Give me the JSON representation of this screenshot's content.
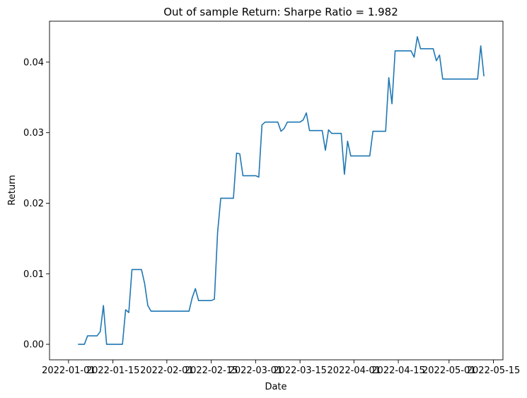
{
  "chart_data": {
    "type": "line",
    "title": "Out of sample Return: Sharpe Ratio = 1.982",
    "xlabel": "Date",
    "ylabel": "Return",
    "grid": false,
    "xlim": [
      "2021-12-26",
      "2022-05-18"
    ],
    "ylim": [
      -0.0022,
      0.0458
    ],
    "x_ticks": [
      "2022-01-01",
      "2022-01-15",
      "2022-02-01",
      "2022-02-15",
      "2022-03-01",
      "2022-03-15",
      "2022-04-01",
      "2022-04-15",
      "2022-05-01",
      "2022-05-15"
    ],
    "y_ticks": [
      "0.00",
      "0.01",
      "0.02",
      "0.03",
      "0.04"
    ],
    "colors": {
      "line": "#1f77b4"
    },
    "series": [
      {
        "x": [
          "2022-01-04",
          "2022-01-05",
          "2022-01-06",
          "2022-01-07",
          "2022-01-10",
          "2022-01-11",
          "2022-01-12",
          "2022-01-13",
          "2022-01-14",
          "2022-01-18",
          "2022-01-19",
          "2022-01-20",
          "2022-01-21",
          "2022-01-24",
          "2022-01-25",
          "2022-01-26",
          "2022-01-27",
          "2022-01-28",
          "2022-01-31",
          "2022-02-01",
          "2022-02-02",
          "2022-02-03",
          "2022-02-04",
          "2022-02-07",
          "2022-02-08",
          "2022-02-09",
          "2022-02-10",
          "2022-02-11",
          "2022-02-14",
          "2022-02-15",
          "2022-02-16",
          "2022-02-17",
          "2022-02-18",
          "2022-02-22",
          "2022-02-23",
          "2022-02-24",
          "2022-02-25",
          "2022-02-28",
          "2022-03-01",
          "2022-03-02",
          "2022-03-03",
          "2022-03-04",
          "2022-03-07",
          "2022-03-08",
          "2022-03-09",
          "2022-03-10",
          "2022-03-11",
          "2022-03-14",
          "2022-03-15",
          "2022-03-16",
          "2022-03-17",
          "2022-03-18",
          "2022-03-21",
          "2022-03-22",
          "2022-03-23",
          "2022-03-24",
          "2022-03-25",
          "2022-03-28",
          "2022-03-29",
          "2022-03-30",
          "2022-03-31",
          "2022-04-01",
          "2022-04-04",
          "2022-04-05",
          "2022-04-06",
          "2022-04-07",
          "2022-04-08",
          "2022-04-11",
          "2022-04-12",
          "2022-04-13",
          "2022-04-14",
          "2022-04-18",
          "2022-04-19",
          "2022-04-20",
          "2022-04-21",
          "2022-04-22",
          "2022-04-25",
          "2022-04-26",
          "2022-04-27",
          "2022-04-28",
          "2022-04-29",
          "2022-05-02",
          "2022-05-03",
          "2022-05-04",
          "2022-05-05",
          "2022-05-06",
          "2022-05-09",
          "2022-05-10",
          "2022-05-11",
          "2022-05-12"
        ],
        "y": [
          0.0,
          0.0,
          0.0,
          0.0012,
          0.0012,
          0.0018,
          0.0055,
          0.0,
          0.0,
          0.0,
          0.0049,
          0.0045,
          0.0106,
          0.0106,
          0.0086,
          0.0055,
          0.0047,
          0.0047,
          0.0047,
          0.0047,
          0.0047,
          0.0047,
          0.0047,
          0.0047,
          0.0047,
          0.0066,
          0.0079,
          0.0062,
          0.0062,
          0.0062,
          0.0064,
          0.0158,
          0.0207,
          0.0207,
          0.0271,
          0.027,
          0.0239,
          0.0239,
          0.0239,
          0.0237,
          0.0311,
          0.0315,
          0.0315,
          0.0315,
          0.0302,
          0.0306,
          0.0315,
          0.0315,
          0.0315,
          0.0318,
          0.0328,
          0.0303,
          0.0303,
          0.0303,
          0.0275,
          0.0304,
          0.0299,
          0.0299,
          0.0241,
          0.0288,
          0.0267,
          0.0267,
          0.0267,
          0.0267,
          0.0267,
          0.0302,
          0.0302,
          0.0302,
          0.0378,
          0.0341,
          0.0416,
          0.0416,
          0.0416,
          0.0407,
          0.0436,
          0.0419,
          0.0419,
          0.0419,
          0.0402,
          0.041,
          0.0376,
          0.0376,
          0.0376,
          0.0376,
          0.0376,
          0.0376,
          0.0376,
          0.0376,
          0.0423,
          0.038
        ]
      }
    ]
  }
}
